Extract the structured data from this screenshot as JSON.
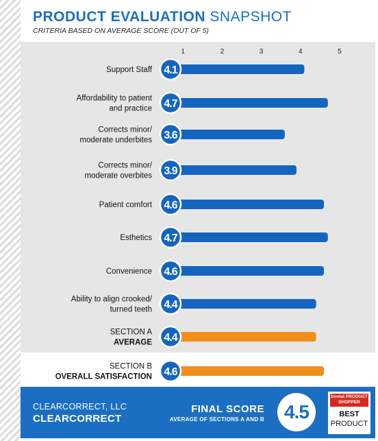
{
  "header": {
    "title_bold": "PRODUCT EVALUATION",
    "title_light": "SNAPSHOT",
    "subtitle": "CRITERIA BASED ON AVERAGE SCORE (OUT OF 5)"
  },
  "colors": {
    "brand_blue": "#1b6fc2",
    "bar_blue": "#1565c0",
    "bar_orange": "#f28e1c",
    "panel_gray": "#e6e6e7"
  },
  "chart_data": {
    "type": "bar",
    "orientation": "horizontal",
    "title": "PRODUCT EVALUATION SNAPSHOT",
    "subtitle": "CRITERIA BASED ON AVERAGE SCORE (OUT OF 5)",
    "xlim": [
      0,
      5
    ],
    "ticks": [
      1,
      2,
      3,
      4,
      5
    ],
    "grid": false,
    "rows": [
      {
        "label": [
          "Support Staff"
        ],
        "value": 4.1,
        "display": "4.1",
        "kind": "criterion"
      },
      {
        "label": [
          "Affordability to patient",
          "and practice"
        ],
        "value": 4.7,
        "display": "4.7",
        "kind": "criterion"
      },
      {
        "label": [
          "Corrects minor/",
          "moderate underbites"
        ],
        "value": 3.6,
        "display": "3.6",
        "kind": "criterion"
      },
      {
        "label": [
          "Corrects minor/",
          "moderate overbites"
        ],
        "value": 3.9,
        "display": "3.9",
        "kind": "criterion"
      },
      {
        "label": [
          "Patient comfort"
        ],
        "value": 4.6,
        "display": "4.6",
        "kind": "criterion"
      },
      {
        "label": [
          "Esthetics"
        ],
        "value": 4.7,
        "display": "4.7",
        "kind": "criterion"
      },
      {
        "label": [
          "Convenience"
        ],
        "value": 4.6,
        "display": "4.6",
        "kind": "criterion"
      },
      {
        "label": [
          "Ability to align crooked/",
          "turned teeth"
        ],
        "value": 4.4,
        "display": "4.4",
        "kind": "criterion"
      },
      {
        "label": [
          "SECTION A",
          "AVERAGE"
        ],
        "value": 4.4,
        "display": "4.4",
        "kind": "section"
      },
      {
        "label": [
          "SECTION B",
          "OVERALL SATISFACTION"
        ],
        "value": 4.6,
        "display": "4.6",
        "kind": "section"
      }
    ]
  },
  "footer": {
    "company": "CLEARCORRECT, LLC",
    "product": "CLEARCORRECT",
    "final_label": "FINAL SCORE",
    "final_sub": "AVERAGE OF SECTIONS A AND B",
    "final_score": "4.5",
    "badge": {
      "brand_line1": "Dental PRODUCT",
      "brand_line2": "SHOPPER",
      "best": "BEST",
      "product": "PRODUCT"
    }
  }
}
